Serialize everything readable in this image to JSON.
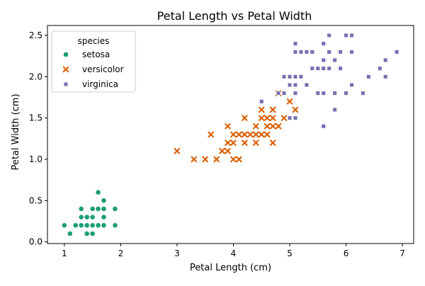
{
  "chart_data": {
    "type": "scatter",
    "title": "Petal Length vs Petal Width",
    "xlabel": "Petal Length (cm)",
    "ylabel": "Petal Width (cm)",
    "xlim": [
      0.7,
      7.2
    ],
    "ylim": [
      -0.02,
      2.62
    ],
    "x_ticks": [
      1,
      2,
      3,
      4,
      5,
      6,
      7
    ],
    "y_ticks": [
      0.0,
      0.5,
      1.0,
      1.5,
      2.0,
      2.5
    ],
    "x_tick_labels": [
      "1",
      "2",
      "3",
      "4",
      "5",
      "6",
      "7"
    ],
    "y_tick_labels": [
      "0.0",
      "0.5",
      "1.0",
      "1.5",
      "2.0",
      "2.5"
    ],
    "grid": false,
    "legend": {
      "title": "species",
      "placement": "top-left"
    },
    "series": [
      {
        "name": "setosa",
        "marker": "circle",
        "color": "#1b9e77",
        "points": [
          [
            1.0,
            0.2
          ],
          [
            1.1,
            0.1
          ],
          [
            1.2,
            0.2
          ],
          [
            1.3,
            0.2
          ],
          [
            1.3,
            0.3
          ],
          [
            1.3,
            0.4
          ],
          [
            1.4,
            0.1
          ],
          [
            1.4,
            0.2
          ],
          [
            1.4,
            0.3
          ],
          [
            1.5,
            0.1
          ],
          [
            1.5,
            0.2
          ],
          [
            1.5,
            0.3
          ],
          [
            1.5,
            0.4
          ],
          [
            1.6,
            0.2
          ],
          [
            1.6,
            0.4
          ],
          [
            1.6,
            0.6
          ],
          [
            1.7,
            0.2
          ],
          [
            1.7,
            0.3
          ],
          [
            1.7,
            0.4
          ],
          [
            1.7,
            0.5
          ],
          [
            1.9,
            0.2
          ],
          [
            1.9,
            0.4
          ]
        ]
      },
      {
        "name": "versicolor",
        "marker": "x",
        "color": "#d95f02",
        "points": [
          [
            3.0,
            1.1
          ],
          [
            3.3,
            1.0
          ],
          [
            3.5,
            1.0
          ],
          [
            3.6,
            1.3
          ],
          [
            3.7,
            1.0
          ],
          [
            3.8,
            1.1
          ],
          [
            3.9,
            1.1
          ],
          [
            3.9,
            1.2
          ],
          [
            3.9,
            1.4
          ],
          [
            4.0,
            1.0
          ],
          [
            4.0,
            1.2
          ],
          [
            4.0,
            1.3
          ],
          [
            4.1,
            1.0
          ],
          [
            4.1,
            1.3
          ],
          [
            4.2,
            1.2
          ],
          [
            4.2,
            1.3
          ],
          [
            4.2,
            1.5
          ],
          [
            4.3,
            1.3
          ],
          [
            4.4,
            1.2
          ],
          [
            4.4,
            1.3
          ],
          [
            4.4,
            1.4
          ],
          [
            4.5,
            1.3
          ],
          [
            4.5,
            1.5
          ],
          [
            4.5,
            1.6
          ],
          [
            4.6,
            1.3
          ],
          [
            4.6,
            1.4
          ],
          [
            4.6,
            1.5
          ],
          [
            4.7,
            1.2
          ],
          [
            4.7,
            1.4
          ],
          [
            4.7,
            1.5
          ],
          [
            4.7,
            1.6
          ],
          [
            4.8,
            1.4
          ],
          [
            4.8,
            1.8
          ],
          [
            4.9,
            1.5
          ],
          [
            5.0,
            1.7
          ],
          [
            5.1,
            1.6
          ]
        ]
      },
      {
        "name": "virginica",
        "marker": "square",
        "color": "#7570b3",
        "points": [
          [
            4.5,
            1.7
          ],
          [
            4.8,
            1.8
          ],
          [
            4.9,
            1.8
          ],
          [
            4.9,
            2.0
          ],
          [
            5.0,
            1.5
          ],
          [
            5.0,
            1.9
          ],
          [
            5.0,
            2.0
          ],
          [
            5.1,
            1.5
          ],
          [
            5.1,
            1.8
          ],
          [
            5.1,
            1.9
          ],
          [
            5.1,
            2.0
          ],
          [
            5.1,
            2.3
          ],
          [
            5.1,
            2.4
          ],
          [
            5.2,
            2.0
          ],
          [
            5.2,
            2.3
          ],
          [
            5.3,
            1.9
          ],
          [
            5.3,
            2.3
          ],
          [
            5.4,
            2.1
          ],
          [
            5.4,
            2.3
          ],
          [
            5.5,
            1.8
          ],
          [
            5.5,
            2.1
          ],
          [
            5.6,
            1.4
          ],
          [
            5.6,
            1.8
          ],
          [
            5.6,
            2.1
          ],
          [
            5.6,
            2.2
          ],
          [
            5.6,
            2.4
          ],
          [
            5.7,
            2.1
          ],
          [
            5.7,
            2.3
          ],
          [
            5.7,
            2.5
          ],
          [
            5.8,
            1.6
          ],
          [
            5.8,
            1.8
          ],
          [
            5.8,
            2.2
          ],
          [
            5.9,
            2.1
          ],
          [
            5.9,
            2.3
          ],
          [
            6.0,
            1.8
          ],
          [
            6.0,
            2.5
          ],
          [
            6.1,
            1.9
          ],
          [
            6.1,
            2.3
          ],
          [
            6.1,
            2.5
          ],
          [
            6.3,
            1.8
          ],
          [
            6.4,
            2.0
          ],
          [
            6.6,
            2.1
          ],
          [
            6.7,
            2.0
          ],
          [
            6.7,
            2.2
          ],
          [
            6.9,
            2.3
          ]
        ]
      }
    ]
  }
}
